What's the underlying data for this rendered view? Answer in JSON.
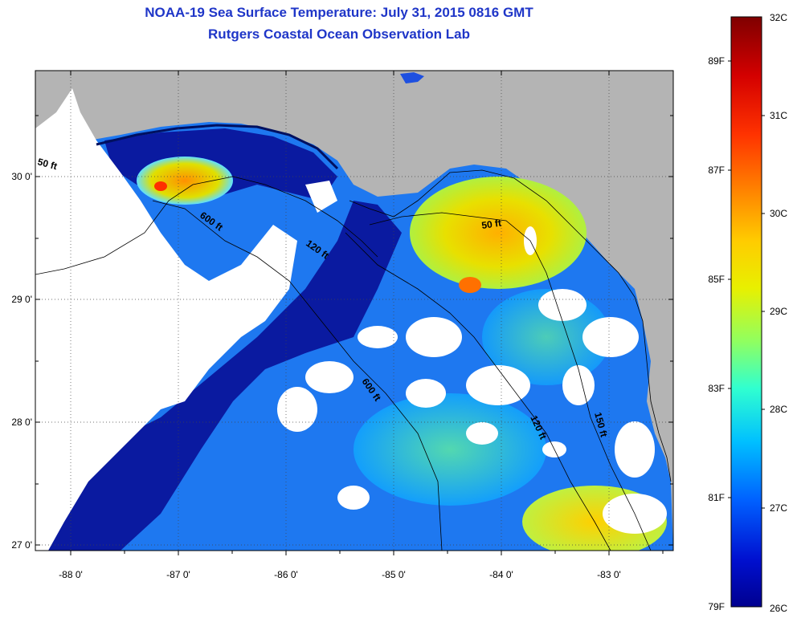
{
  "title": {
    "line1": "NOAA-19 Sea Surface Temperature:  July 31, 2015 0816 GMT",
    "line2": "Rutgers Coastal Ocean Observation Lab"
  },
  "axes": {
    "x_ticks": [
      "-88 0'",
      "-87 0'",
      "-86 0'",
      "-85 0'",
      "-84 0'",
      "-83 0'"
    ],
    "y_ticks": [
      "30 0'",
      "29 0'",
      "28 0'",
      "27 0'"
    ]
  },
  "contour_labels": [
    "50 ft",
    "600 ft",
    "120 ft",
    "50 ft",
    "600 ft",
    "120 ft",
    "150 ft"
  ],
  "colorbar": {
    "celsius": [
      "32C",
      "31C",
      "30C",
      "29C",
      "28C",
      "27C",
      "26C"
    ],
    "fahrenheit": [
      "89F",
      "87F",
      "85F",
      "83F",
      "81F",
      "79F"
    ],
    "colors": [
      "#7f0000",
      "#d40000",
      "#ff5500",
      "#ffaa00",
      "#f0f000",
      "#a0ff60",
      "#40ffc0",
      "#00c8ff",
      "#0070ff",
      "#0020d8",
      "#00008f"
    ]
  },
  "colors": {
    "land": "#b4b4b4",
    "cloud": "#ffffff",
    "title": "#1f36c8"
  }
}
